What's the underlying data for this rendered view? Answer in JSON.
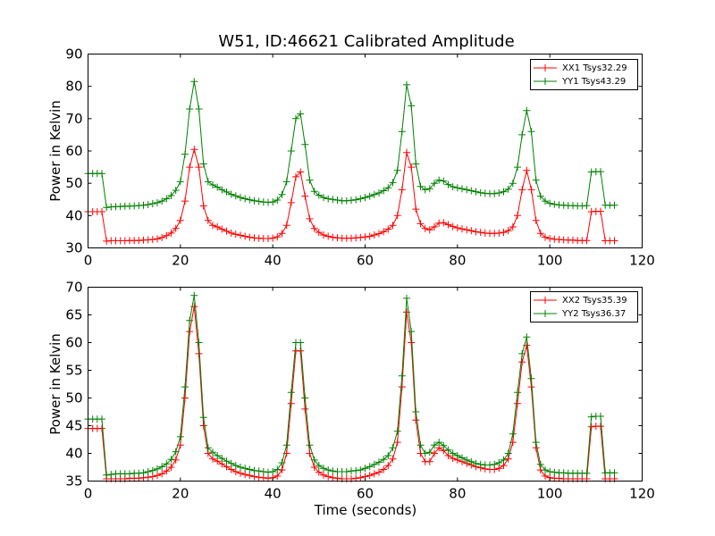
{
  "chart_data": [
    {
      "type": "line",
      "title": "W51, ID:46621 Calibrated Amplitude",
      "xlabel": "",
      "ylabel": "Power in Kelvin",
      "xlim": [
        0,
        120
      ],
      "ylim": [
        30,
        90
      ],
      "xticks": [
        0,
        20,
        40,
        60,
        80,
        100,
        120
      ],
      "yticks": [
        30,
        40,
        50,
        60,
        70,
        80,
        90
      ],
      "grid": false,
      "legend": "top-right",
      "series": [
        {
          "name": "XX1 Tsys32.29",
          "color": "#ff0000",
          "x": [
            0,
            1,
            2,
            3,
            4,
            5,
            6,
            7,
            8,
            9,
            10,
            11,
            12,
            13,
            14,
            15,
            16,
            17,
            18,
            19,
            20,
            21,
            22,
            23,
            24,
            25,
            26,
            27,
            28,
            29,
            30,
            31,
            32,
            33,
            34,
            35,
            36,
            37,
            38,
            39,
            40,
            41,
            42,
            43,
            44,
            45,
            46,
            47,
            48,
            49,
            50,
            51,
            52,
            53,
            54,
            55,
            56,
            57,
            58,
            59,
            60,
            61,
            62,
            63,
            64,
            65,
            66,
            67,
            68,
            69,
            70,
            71,
            72,
            73,
            74,
            75,
            76,
            77,
            78,
            79,
            80,
            81,
            82,
            83,
            84,
            85,
            86,
            87,
            88,
            89,
            90,
            91,
            92,
            93,
            94,
            95,
            96,
            97,
            98,
            99,
            100,
            101,
            102,
            103,
            104,
            105,
            106,
            107,
            108,
            109,
            110,
            111,
            112,
            113,
            114
          ],
          "y": [
            41.2,
            41.2,
            41.2,
            41.2,
            32.1,
            32.2,
            32.2,
            32.2,
            32.2,
            32.3,
            32.3,
            32.3,
            32.4,
            32.5,
            32.6,
            32.8,
            33.2,
            33.8,
            34.6,
            36.0,
            38.5,
            44.5,
            55.0,
            60.5,
            55.0,
            43.0,
            38.5,
            37.0,
            36.5,
            35.8,
            35.2,
            34.6,
            34.2,
            33.9,
            33.6,
            33.3,
            33.1,
            33.0,
            32.9,
            32.9,
            33.0,
            33.4,
            34.5,
            37.0,
            44.0,
            52.0,
            53.5,
            46.0,
            39.0,
            36.0,
            34.8,
            34.0,
            33.6,
            33.3,
            33.1,
            33.0,
            33.0,
            33.0,
            33.1,
            33.2,
            33.4,
            33.6,
            34.0,
            34.4,
            35.0,
            35.8,
            37.0,
            40.0,
            48.0,
            59.5,
            55.0,
            42.0,
            37.5,
            36.0,
            35.6,
            36.5,
            37.7,
            37.8,
            37.2,
            36.6,
            36.2,
            35.9,
            35.6,
            35.3,
            35.0,
            34.8,
            34.6,
            34.5,
            34.5,
            34.6,
            34.8,
            35.3,
            36.5,
            40.0,
            48.0,
            54.0,
            48.0,
            38.5,
            34.5,
            33.3,
            32.9,
            32.7,
            32.6,
            32.5,
            32.4,
            32.4,
            32.3,
            32.3,
            32.3,
            41.2,
            41.3,
            41.3,
            32.2,
            32.2,
            32.2
          ]
        },
        {
          "name": "YY1 Tsys43.29",
          "color": "#008000",
          "x": [
            0,
            1,
            2,
            3,
            4,
            5,
            6,
            7,
            8,
            9,
            10,
            11,
            12,
            13,
            14,
            15,
            16,
            17,
            18,
            19,
            20,
            21,
            22,
            23,
            24,
            25,
            26,
            27,
            28,
            29,
            30,
            31,
            32,
            33,
            34,
            35,
            36,
            37,
            38,
            39,
            40,
            41,
            42,
            43,
            44,
            45,
            46,
            47,
            48,
            49,
            50,
            51,
            52,
            53,
            54,
            55,
            56,
            57,
            58,
            59,
            60,
            61,
            62,
            63,
            64,
            65,
            66,
            67,
            68,
            69,
            70,
            71,
            72,
            73,
            74,
            75,
            76,
            77,
            78,
            79,
            80,
            81,
            82,
            83,
            84,
            85,
            86,
            87,
            88,
            89,
            90,
            91,
            92,
            93,
            94,
            95,
            96,
            97,
            98,
            99,
            100,
            101,
            102,
            103,
            104,
            105,
            106,
            107,
            108,
            109,
            110,
            111,
            112,
            113,
            114
          ],
          "y": [
            53.0,
            53.0,
            53.0,
            53.0,
            42.5,
            42.7,
            42.8,
            42.8,
            42.9,
            42.9,
            43.0,
            43.1,
            43.2,
            43.4,
            43.7,
            44.0,
            44.5,
            45.2,
            46.2,
            47.8,
            50.5,
            59.0,
            73.0,
            81.5,
            73.0,
            56.0,
            50.5,
            49.5,
            48.8,
            48.0,
            47.3,
            46.6,
            46.1,
            45.6,
            45.2,
            44.9,
            44.6,
            44.4,
            44.2,
            44.1,
            44.2,
            44.8,
            46.5,
            50.5,
            60.0,
            70.0,
            71.5,
            62.0,
            51.0,
            47.5,
            46.3,
            45.6,
            45.2,
            45.0,
            44.8,
            44.6,
            44.6,
            44.7,
            44.9,
            45.2,
            45.6,
            46.0,
            46.5,
            47.0,
            47.7,
            48.6,
            50.2,
            54.0,
            66.0,
            80.5,
            74.0,
            56.0,
            49.0,
            48.0,
            48.3,
            50.0,
            51.0,
            50.7,
            49.6,
            48.9,
            48.6,
            48.3,
            48.0,
            47.7,
            47.4,
            47.1,
            46.9,
            46.8,
            46.8,
            47.0,
            47.4,
            48.2,
            50.0,
            55.0,
            65.0,
            72.5,
            66.0,
            51.0,
            46.0,
            44.5,
            43.8,
            43.5,
            43.3,
            43.2,
            43.1,
            43.1,
            43.0,
            43.0,
            43.1,
            53.5,
            53.6,
            53.6,
            43.2,
            43.2,
            43.2
          ]
        }
      ]
    },
    {
      "type": "line",
      "title": "",
      "xlabel": "Time (seconds)",
      "ylabel": "Power in Kelvin",
      "xlim": [
        0,
        120
      ],
      "ylim": [
        35,
        70
      ],
      "xticks": [
        0,
        20,
        40,
        60,
        80,
        100,
        120
      ],
      "yticks": [
        35,
        40,
        45,
        50,
        55,
        60,
        65,
        70
      ],
      "grid": false,
      "legend": "top-right",
      "series": [
        {
          "name": "XX2 Tsys35.39",
          "color": "#ff0000",
          "x": [
            0,
            1,
            2,
            3,
            4,
            5,
            6,
            7,
            8,
            9,
            10,
            11,
            12,
            13,
            14,
            15,
            16,
            17,
            18,
            19,
            20,
            21,
            22,
            23,
            24,
            25,
            26,
            27,
            28,
            29,
            30,
            31,
            32,
            33,
            34,
            35,
            36,
            37,
            38,
            39,
            40,
            41,
            42,
            43,
            44,
            45,
            46,
            47,
            48,
            49,
            50,
            51,
            52,
            53,
            54,
            55,
            56,
            57,
            58,
            59,
            60,
            61,
            62,
            63,
            64,
            65,
            66,
            67,
            68,
            69,
            70,
            71,
            72,
            73,
            74,
            75,
            76,
            77,
            78,
            79,
            80,
            81,
            82,
            83,
            84,
            85,
            86,
            87,
            88,
            89,
            90,
            91,
            92,
            93,
            94,
            95,
            96,
            97,
            98,
            99,
            100,
            101,
            102,
            103,
            104,
            105,
            106,
            107,
            108,
            109,
            110,
            111,
            112,
            113,
            114
          ],
          "y": [
            44.5,
            44.5,
            44.5,
            44.5,
            35.4,
            35.4,
            35.4,
            35.4,
            35.4,
            35.5,
            35.5,
            35.5,
            35.6,
            35.7,
            35.8,
            36.0,
            36.3,
            36.8,
            37.5,
            38.8,
            41.5,
            50.0,
            62.0,
            66.5,
            58.0,
            45.0,
            40.0,
            39.0,
            38.6,
            38.1,
            37.6,
            37.1,
            36.7,
            36.4,
            36.2,
            36.0,
            35.8,
            35.7,
            35.6,
            35.5,
            35.6,
            35.9,
            37.0,
            40.0,
            49.0,
            58.5,
            58.5,
            48.0,
            40.0,
            37.5,
            36.6,
            36.1,
            35.8,
            35.6,
            35.5,
            35.4,
            35.4,
            35.4,
            35.5,
            35.6,
            35.8,
            36.0,
            36.3,
            36.6,
            37.1,
            37.8,
            39.0,
            42.0,
            52.0,
            65.5,
            60.0,
            46.0,
            40.0,
            38.5,
            38.5,
            40.0,
            41.0,
            40.5,
            39.6,
            39.1,
            38.8,
            38.5,
            38.2,
            37.9,
            37.6,
            37.4,
            37.2,
            37.1,
            37.1,
            37.3,
            37.8,
            39.0,
            42.0,
            49.0,
            56.5,
            59.5,
            52.0,
            41.0,
            37.0,
            35.9,
            35.6,
            35.5,
            35.5,
            35.4,
            35.4,
            35.4,
            35.4,
            35.4,
            35.4,
            44.8,
            44.9,
            44.9,
            35.4,
            35.4,
            35.4
          ]
        },
        {
          "name": "YY2 Tsys36.37",
          "color": "#008000",
          "x": [
            0,
            1,
            2,
            3,
            4,
            5,
            6,
            7,
            8,
            9,
            10,
            11,
            12,
            13,
            14,
            15,
            16,
            17,
            18,
            19,
            20,
            21,
            22,
            23,
            24,
            25,
            26,
            27,
            28,
            29,
            30,
            31,
            32,
            33,
            34,
            35,
            36,
            37,
            38,
            39,
            40,
            41,
            42,
            43,
            44,
            45,
            46,
            47,
            48,
            49,
            50,
            51,
            52,
            53,
            54,
            55,
            56,
            57,
            58,
            59,
            60,
            61,
            62,
            63,
            64,
            65,
            66,
            67,
            68,
            69,
            70,
            71,
            72,
            73,
            74,
            75,
            76,
            77,
            78,
            79,
            80,
            81,
            82,
            83,
            84,
            85,
            86,
            87,
            88,
            89,
            90,
            91,
            92,
            93,
            94,
            95,
            96,
            97,
            98,
            99,
            100,
            101,
            102,
            103,
            104,
            105,
            106,
            107,
            108,
            109,
            110,
            111,
            112,
            113,
            114
          ],
          "y": [
            46.2,
            46.2,
            46.2,
            46.2,
            36.1,
            36.2,
            36.3,
            36.3,
            36.3,
            36.3,
            36.4,
            36.4,
            36.5,
            36.7,
            36.9,
            37.2,
            37.6,
            38.1,
            38.9,
            40.3,
            43.0,
            52.0,
            64.0,
            68.5,
            60.0,
            46.5,
            41.0,
            40.2,
            39.6,
            39.1,
            38.6,
            38.2,
            37.8,
            37.5,
            37.3,
            37.1,
            36.9,
            36.8,
            36.7,
            36.6,
            36.7,
            37.1,
            38.3,
            41.5,
            51.0,
            60.0,
            60.0,
            50.0,
            41.5,
            38.8,
            37.8,
            37.3,
            37.0,
            36.8,
            36.7,
            36.7,
            36.7,
            36.8,
            36.9,
            37.0,
            37.3,
            37.6,
            38.0,
            38.4,
            38.9,
            39.6,
            41.0,
            44.0,
            54.0,
            68.0,
            62.0,
            47.5,
            41.5,
            40.0,
            40.2,
            41.5,
            42.0,
            41.4,
            40.6,
            40.0,
            39.6,
            39.2,
            38.8,
            38.5,
            38.2,
            38.0,
            37.9,
            37.9,
            38.0,
            38.3,
            38.8,
            40.0,
            43.5,
            51.0,
            58.0,
            61.0,
            53.5,
            42.0,
            38.0,
            37.0,
            36.7,
            36.6,
            36.5,
            36.5,
            36.4,
            36.4,
            36.4,
            36.4,
            36.4,
            46.6,
            46.7,
            46.7,
            36.5,
            36.5,
            36.5
          ]
        }
      ]
    }
  ]
}
